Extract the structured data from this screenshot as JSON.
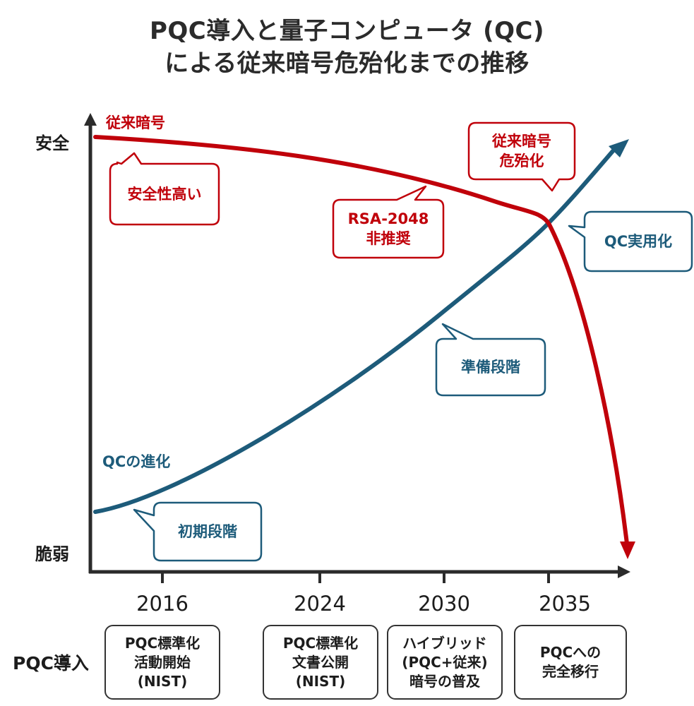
{
  "title": {
    "line1": "PQC導入と量子コンピュータ (QC)",
    "line2": "による従来暗号危殆化までの推移"
  },
  "y_axis": {
    "top_label": "安全",
    "bottom_label": "脆弱"
  },
  "x_axis": {
    "years": [
      "2016",
      "2024",
      "2030",
      "2035"
    ]
  },
  "series": {
    "classical": {
      "name": "従来暗号",
      "color": "#c0000a"
    },
    "qc": {
      "name": "QCの進化",
      "color": "#1d5b7a"
    }
  },
  "callouts": {
    "high_security": "安全性高い",
    "rsa_deprecated": "RSA-2048\n非推奨",
    "compromised": "従来暗号\n危殆化",
    "qc_practical": "QC実用化",
    "preparation": "準備段階",
    "initial": "初期段階"
  },
  "pqc": {
    "label": "PQC導入",
    "milestones": [
      "PQC標準化\n活動開始\n(NIST)",
      "PQC標準化\n文書公開\n(NIST)",
      "ハイブリッド\n(PQC+従来)\n暗号の普及",
      "PQCへの\n完全移行"
    ]
  }
}
